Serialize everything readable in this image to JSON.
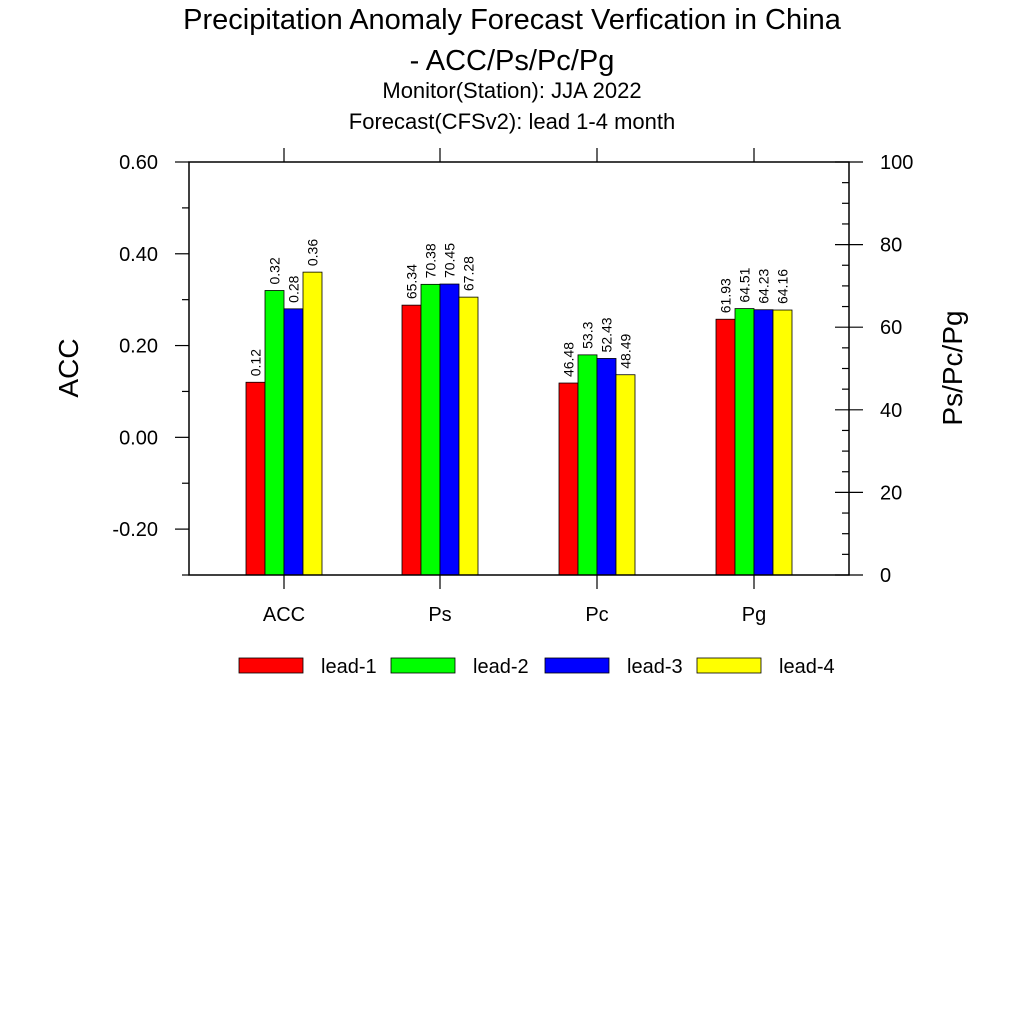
{
  "chart_data": {
    "type": "bar",
    "title_line1": "Precipitation Anomaly Forecast Verfication in China",
    "title_line2": "- ACC/Ps/Pc/Pg",
    "subtitle_line1": "Monitor(Station): JJA 2022",
    "subtitle_line2": "Forecast(CFSv2): lead 1-4 month",
    "ylabel_left": "ACC",
    "ylabel_right": "Ps/Pc/Pg",
    "categories": [
      "ACC",
      "Ps",
      "Pc",
      "Pg"
    ],
    "ylim_left": [
      -0.3,
      0.6
    ],
    "ylim_right": [
      0,
      100
    ],
    "left_ticks": [
      "0.60",
      "0.40",
      "0.20",
      "0.00",
      "-0.20"
    ],
    "right_ticks": [
      "100",
      "80",
      "60",
      "40",
      "20",
      "0"
    ],
    "grid": false,
    "legend_position": "bottom",
    "series": [
      {
        "name": "lead-1",
        "color": "#ff0000",
        "values": [
          0.12,
          65.34,
          46.48,
          61.93
        ],
        "labels": [
          "0.12",
          "65.34",
          "46.48",
          "61.93"
        ]
      },
      {
        "name": "lead-2",
        "color": "#00ff00",
        "values": [
          0.32,
          70.38,
          53.3,
          64.51
        ],
        "labels": [
          "0.32",
          "70.38",
          "53.3",
          "64.51"
        ]
      },
      {
        "name": "lead-3",
        "color": "#0000ff",
        "values": [
          0.28,
          70.45,
          52.43,
          64.23
        ],
        "labels": [
          "0.28",
          "70.45",
          "52.43",
          "64.23"
        ]
      },
      {
        "name": "lead-4",
        "color": "#ffff00",
        "values": [
          0.36,
          67.28,
          48.49,
          64.16
        ],
        "labels": [
          "0.36",
          "67.28",
          "48.49",
          "64.16"
        ]
      }
    ]
  }
}
